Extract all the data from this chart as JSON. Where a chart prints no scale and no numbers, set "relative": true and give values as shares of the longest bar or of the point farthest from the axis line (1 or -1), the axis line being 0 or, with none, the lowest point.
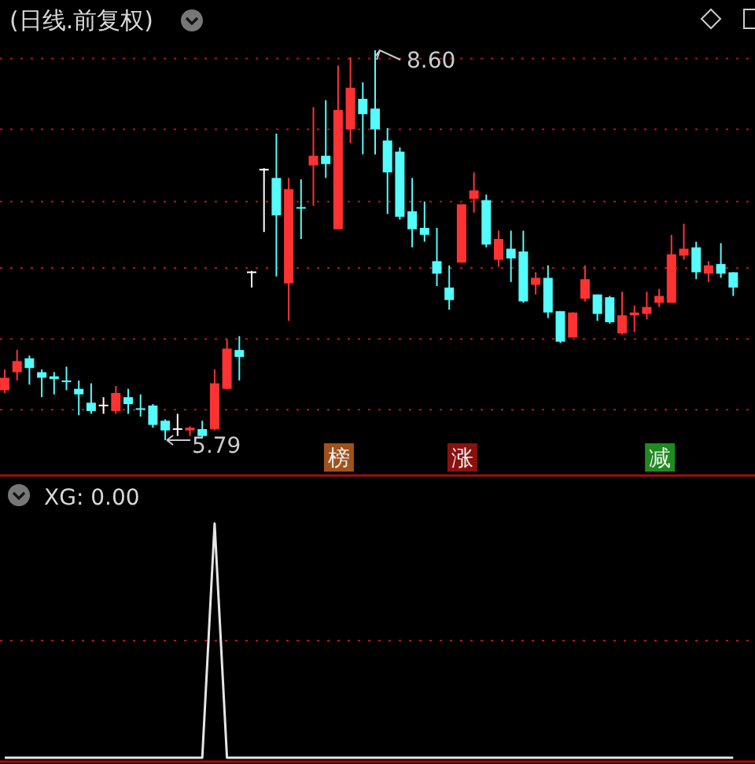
{
  "chart_data": [
    {
      "type": "candlestick",
      "title": "(日线.前复权)",
      "ref_lines": [
        {
          "axis": "y",
          "value": 8.54,
          "color": "#b01818",
          "line_style": "dotted"
        },
        {
          "axis": "y",
          "value": 8.03,
          "color": "#b01818",
          "line_style": "dotted"
        },
        {
          "axis": "y",
          "value": 7.51,
          "color": "#b01818",
          "line_style": "dotted"
        },
        {
          "axis": "y",
          "value": 7.03,
          "color": "#b01818",
          "line_style": "dotted"
        },
        {
          "axis": "y",
          "value": 6.52,
          "color": "#b01818",
          "line_style": "dotted"
        },
        {
          "axis": "y",
          "value": 6.01,
          "color": "#b01818",
          "line_style": "dotted"
        }
      ],
      "categories": [
        null,
        null,
        null,
        null,
        null,
        null,
        null,
        null,
        null,
        null,
        null,
        null,
        null,
        null,
        null,
        null,
        null,
        null,
        null,
        null,
        null,
        null,
        null,
        null,
        null,
        null,
        null,
        null,
        null,
        null,
        null,
        null,
        null,
        null,
        null,
        null,
        null,
        null,
        null,
        null,
        null,
        null,
        null,
        null,
        null,
        null,
        null,
        null,
        null,
        null,
        null,
        null,
        null,
        null,
        null,
        null,
        null,
        null,
        null,
        null
      ],
      "ohlc": [
        [
          6.15,
          6.3,
          6.13,
          6.24
        ],
        [
          6.28,
          6.44,
          6.22,
          6.36
        ],
        [
          6.38,
          6.4,
          6.19,
          6.31
        ],
        [
          6.28,
          6.3,
          6.1,
          6.24
        ],
        [
          6.25,
          6.28,
          6.12,
          6.23
        ],
        [
          6.22,
          6.32,
          6.15,
          6.21
        ],
        [
          6.16,
          6.22,
          5.97,
          6.12
        ],
        [
          6.06,
          6.2,
          5.98,
          6.0
        ],
        [
          6.04,
          6.1,
          5.98,
          6.04
        ],
        [
          6.0,
          6.18,
          5.98,
          6.13
        ],
        [
          6.1,
          6.16,
          5.98,
          6.05
        ],
        [
          6.02,
          6.12,
          5.96,
          6.01
        ],
        [
          6.04,
          6.05,
          5.88,
          5.9
        ],
        [
          5.93,
          5.94,
          5.79,
          5.86
        ],
        [
          5.87,
          5.98,
          5.82,
          5.87
        ],
        [
          5.86,
          5.89,
          5.82,
          5.88
        ],
        [
          5.87,
          5.93,
          5.81,
          5.82
        ],
        [
          5.87,
          6.3,
          5.86,
          6.2
        ],
        [
          6.16,
          6.52,
          6.16,
          6.45
        ],
        [
          6.44,
          6.54,
          6.22,
          6.39
        ],
        [
          7.0,
          7.01,
          6.89,
          7.0
        ],
        [
          7.74,
          7.75,
          7.29,
          7.74
        ],
        [
          7.68,
          8.0,
          6.97,
          7.41
        ],
        [
          6.92,
          7.68,
          6.65,
          7.6
        ],
        [
          7.47,
          7.67,
          7.24,
          7.46
        ],
        [
          7.77,
          8.19,
          7.48,
          7.84
        ],
        [
          7.84,
          8.24,
          7.68,
          7.78
        ],
        [
          7.31,
          8.49,
          7.31,
          8.17
        ],
        [
          8.03,
          8.55,
          7.93,
          8.33
        ],
        [
          8.25,
          8.37,
          7.85,
          8.14
        ],
        [
          8.18,
          8.6,
          7.85,
          8.03
        ],
        [
          7.95,
          8.04,
          7.42,
          7.72
        ],
        [
          7.87,
          7.9,
          7.38,
          7.4
        ],
        [
          7.44,
          7.68,
          7.18,
          7.31
        ],
        [
          7.32,
          7.51,
          7.22,
          7.27
        ],
        [
          7.08,
          7.32,
          6.9,
          6.99
        ],
        [
          6.89,
          7.05,
          6.73,
          6.8
        ],
        [
          7.07,
          7.49,
          7.07,
          7.49
        ],
        [
          7.53,
          7.72,
          7.43,
          7.59
        ],
        [
          7.52,
          7.56,
          7.18,
          7.2
        ],
        [
          7.09,
          7.3,
          7.04,
          7.24
        ],
        [
          7.17,
          7.3,
          6.93,
          7.1
        ],
        [
          7.15,
          7.3,
          6.78,
          6.79
        ],
        [
          6.91,
          7.0,
          6.84,
          6.96
        ],
        [
          6.96,
          7.05,
          6.67,
          6.71
        ],
        [
          6.72,
          6.72,
          6.49,
          6.5
        ],
        [
          6.53,
          6.71,
          6.53,
          6.71
        ],
        [
          6.81,
          7.05,
          6.79,
          6.95
        ],
        [
          6.84,
          6.84,
          6.65,
          6.7
        ],
        [
          6.82,
          6.83,
          6.63,
          6.64
        ],
        [
          6.56,
          6.86,
          6.55,
          6.69
        ],
        [
          6.69,
          6.76,
          6.57,
          6.71
        ],
        [
          6.7,
          6.86,
          6.66,
          6.75
        ],
        [
          6.78,
          6.88,
          6.75,
          6.83
        ],
        [
          6.78,
          7.27,
          6.78,
          7.13
        ],
        [
          7.12,
          7.35,
          7.09,
          7.17
        ],
        [
          7.18,
          7.22,
          6.95,
          7.0
        ],
        [
          6.99,
          7.08,
          6.93,
          7.05
        ],
        [
          7.06,
          7.21,
          6.96,
          6.99
        ],
        [
          7.0,
          7.0,
          6.83,
          6.89
        ]
      ],
      "colors": [
        "#ff3232",
        "#ff3232",
        "#54fcfc",
        "#54fcfc",
        "#54fcfc",
        "#54fcfc",
        "#54fcfc",
        "#54fcfc",
        "#ffffff",
        "#ff3232",
        "#54fcfc",
        "#54fcfc",
        "#54fcfc",
        "#54fcfc",
        "#ffffff",
        "#ff3232",
        "#54fcfc",
        "#ff3232",
        "#ff3232",
        "#54fcfc",
        "#ffffff",
        "#ffffff",
        "#54fcfc",
        "#ff3232",
        "#54fcfc",
        "#ff3232",
        "#54fcfc",
        "#ff3232",
        "#ff3232",
        "#54fcfc",
        "#54fcfc",
        "#54fcfc",
        "#54fcfc",
        "#54fcfc",
        "#54fcfc",
        "#54fcfc",
        "#54fcfc",
        "#ff3232",
        "#ff3232",
        "#54fcfc",
        "#ff3232",
        "#54fcfc",
        "#54fcfc",
        "#ff3232",
        "#54fcfc",
        "#54fcfc",
        "#ff3232",
        "#ff3232",
        "#54fcfc",
        "#54fcfc",
        "#ff3232",
        "#ff3232",
        "#ff3232",
        "#ff3232",
        "#ff3232",
        "#ff3232",
        "#54fcfc",
        "#ff3232",
        "#54fcfc",
        "#54fcfc"
      ],
      "annotations": [
        "8.60",
        "5.79",
        "榜",
        "涨",
        "减"
      ]
    },
    {
      "type": "line",
      "title": "XG: 0.00",
      "relative": true,
      "ref_lines": [
        {
          "axis": "y",
          "value": 0.5,
          "color": "#b01818",
          "line_style": "dotted"
        }
      ],
      "categories": [
        null,
        null,
        null,
        null,
        null,
        null,
        null,
        null,
        null,
        null,
        null,
        null,
        null,
        null,
        null,
        null,
        null,
        null,
        null,
        null,
        null,
        null,
        null,
        null,
        null,
        null,
        null,
        null,
        null,
        null,
        null,
        null,
        null,
        null,
        null,
        null,
        null,
        null,
        null,
        null,
        null,
        null,
        null,
        null,
        null,
        null,
        null,
        null,
        null,
        null,
        null,
        null,
        null,
        null,
        null,
        null,
        null,
        null,
        null,
        null
      ],
      "series": [
        {
          "color": "#e6e6e6",
          "values": [
            0,
            0,
            0,
            0,
            0,
            0,
            0,
            0,
            0,
            0,
            0,
            0,
            0,
            0,
            0,
            0,
            0,
            1,
            0,
            0,
            0,
            0,
            0,
            0,
            0,
            0,
            0,
            0,
            0,
            0,
            0,
            0,
            0,
            0,
            0,
            0,
            0,
            0,
            0,
            0,
            0,
            0,
            0,
            0,
            0,
            0,
            0,
            0,
            0,
            0,
            0,
            0,
            0,
            0,
            0,
            0,
            0,
            0,
            0,
            0
          ]
        }
      ]
    }
  ]
}
